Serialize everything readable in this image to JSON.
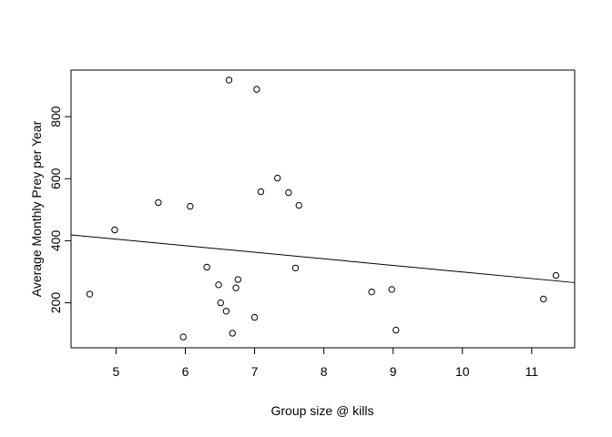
{
  "chart_data": {
    "type": "scatter",
    "title": "",
    "xlabel": "Group size @ kills",
    "ylabel": "Average Monthly Prey per Year",
    "xlim": [
      4.35,
      11.62
    ],
    "ylim": [
      55,
      950
    ],
    "x_ticks": [
      5,
      6,
      7,
      8,
      9,
      10,
      11
    ],
    "y_ticks": [
      200,
      400,
      600,
      800
    ],
    "grid": false,
    "points": [
      {
        "x": 4.62,
        "y": 228
      },
      {
        "x": 4.98,
        "y": 435
      },
      {
        "x": 5.61,
        "y": 523
      },
      {
        "x": 5.97,
        "y": 90
      },
      {
        "x": 6.07,
        "y": 511
      },
      {
        "x": 6.31,
        "y": 315
      },
      {
        "x": 6.48,
        "y": 258
      },
      {
        "x": 6.51,
        "y": 200
      },
      {
        "x": 6.59,
        "y": 173
      },
      {
        "x": 6.63,
        "y": 918
      },
      {
        "x": 6.68,
        "y": 102
      },
      {
        "x": 6.73,
        "y": 248
      },
      {
        "x": 6.76,
        "y": 275
      },
      {
        "x": 7.0,
        "y": 153
      },
      {
        "x": 7.03,
        "y": 888
      },
      {
        "x": 7.09,
        "y": 558
      },
      {
        "x": 7.33,
        "y": 602
      },
      {
        "x": 7.49,
        "y": 555
      },
      {
        "x": 7.59,
        "y": 312
      },
      {
        "x": 7.64,
        "y": 514
      },
      {
        "x": 8.69,
        "y": 235
      },
      {
        "x": 8.98,
        "y": 243
      },
      {
        "x": 9.04,
        "y": 112
      },
      {
        "x": 11.17,
        "y": 212
      },
      {
        "x": 11.35,
        "y": 288
      }
    ],
    "regression_line": {
      "x": [
        4.35,
        11.62
      ],
      "y": [
        419,
        265
      ]
    }
  }
}
